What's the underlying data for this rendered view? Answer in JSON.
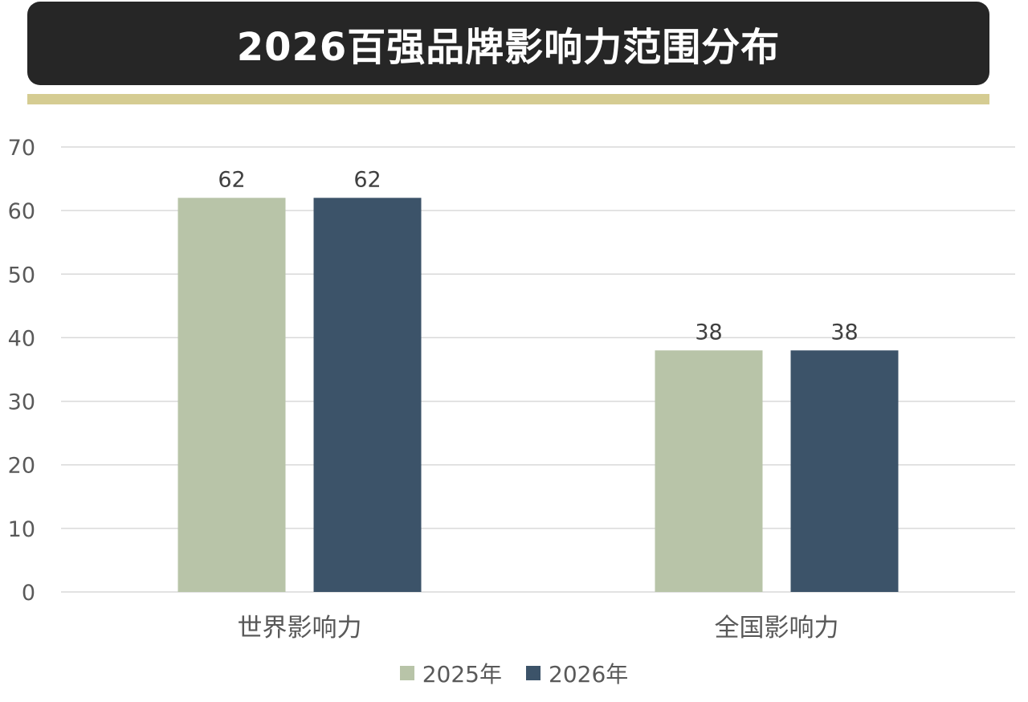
{
  "colors": {
    "banner_bg": "#262626",
    "accent_rule": "#d5cc92",
    "series_2025": "#b8c4a8",
    "series_2026": "#3c5369",
    "gridline": "#d9d9d9",
    "axis_text": "#595959"
  },
  "chart_data": {
    "type": "bar",
    "title": "2026百强品牌影响力范围分布",
    "categories": [
      "世界影响力",
      "全国影响力"
    ],
    "series": [
      {
        "name": "2025年",
        "values": [
          62,
          38
        ]
      },
      {
        "name": "2026年",
        "values": [
          62,
          38
        ]
      }
    ],
    "yticks": [
      0,
      10,
      20,
      30,
      40,
      50,
      60,
      70
    ],
    "ylim": [
      0,
      70
    ],
    "grid": true,
    "data_labels": true,
    "legend_position": "bottom"
  }
}
